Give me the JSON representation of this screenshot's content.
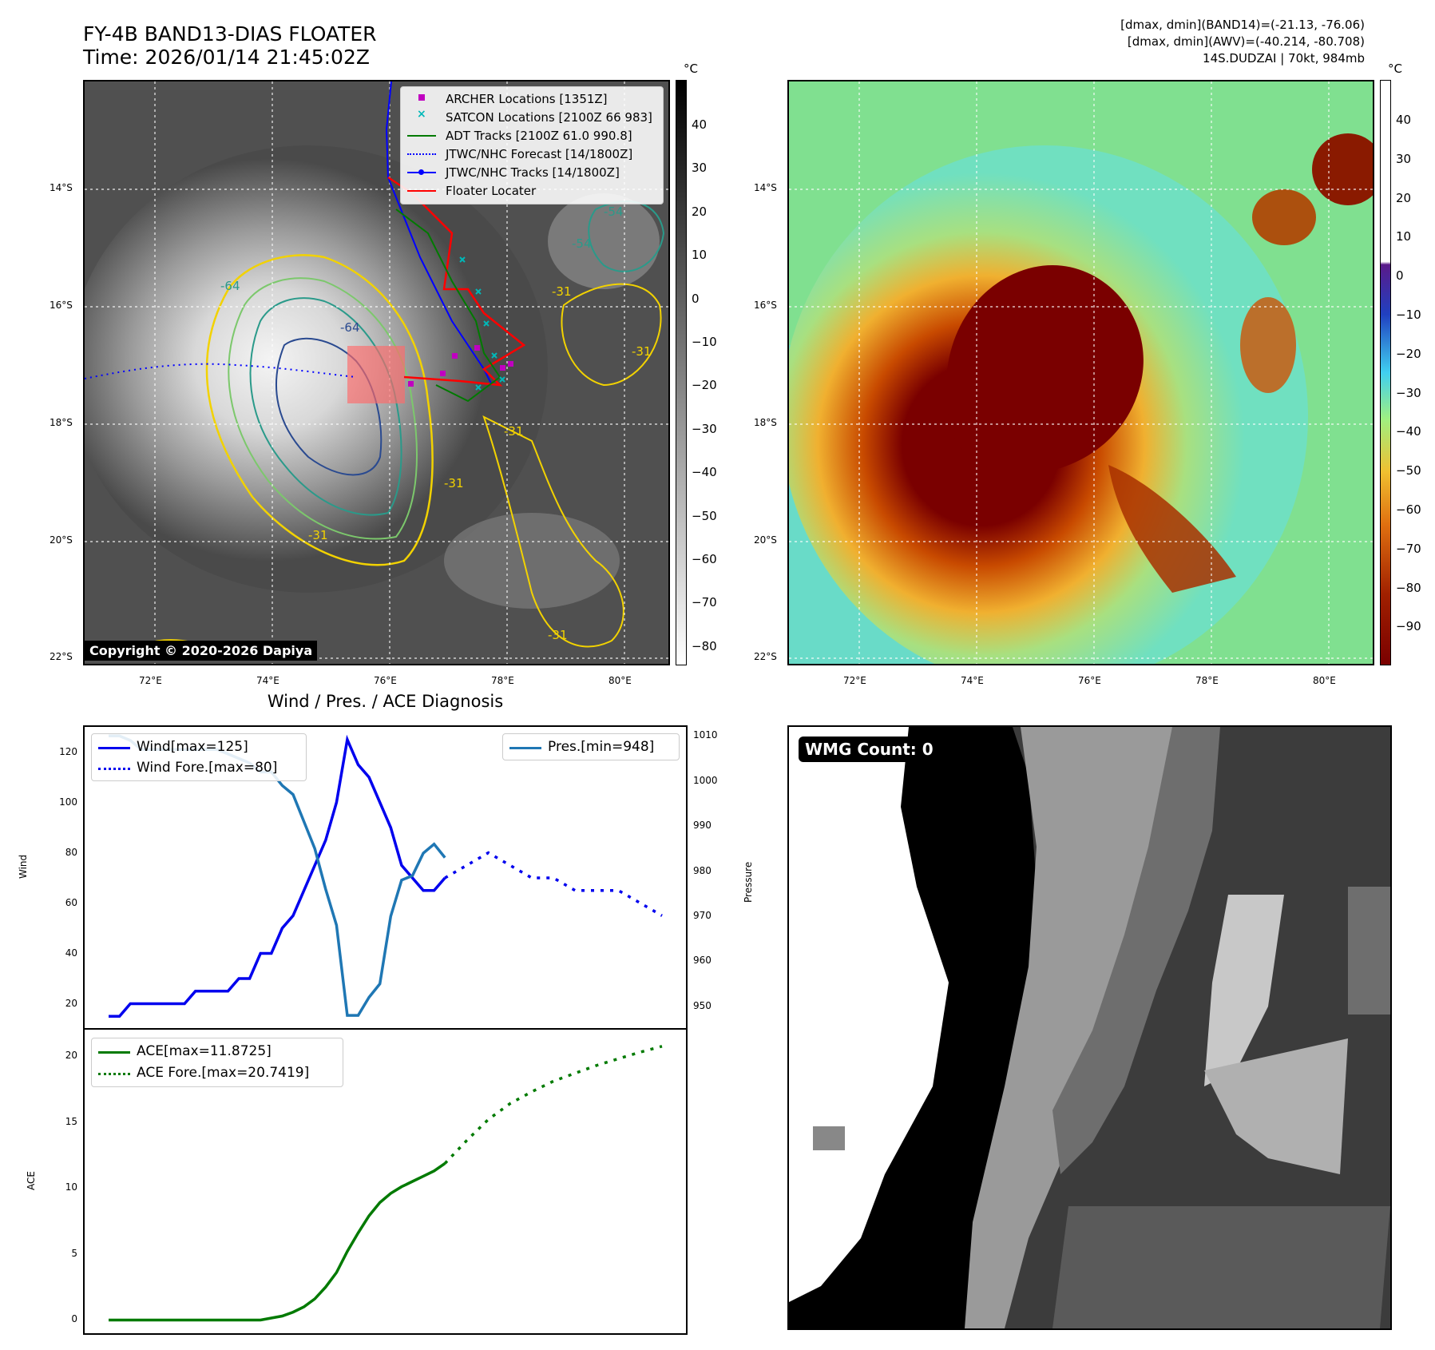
{
  "header": {
    "title": "FY-4B BAND13-DIAS FLOATER",
    "time": "Time: 2026/01/14 21:45:02Z",
    "dmax_band14": "[dmax, dmin](BAND14)=(-21.13, -76.06)",
    "dmax_awv": "[dmax, dmin](AWV)=(-40.214, -80.708)",
    "storm": "14S.DUDZAI | 70kt, 984mb"
  },
  "map": {
    "lat_labels": [
      "14°S",
      "16°S",
      "18°S",
      "20°S",
      "22°S"
    ],
    "lon_labels": [
      "72°E",
      "74°E",
      "76°E",
      "78°E",
      "80°E"
    ],
    "copyright": "Copyright © 2020-2026 Dapiya",
    "contour_labels": [
      "-64",
      "-64",
      "-54",
      "-54",
      "-31",
      "-31",
      "-31",
      "-31",
      "-31",
      "-31"
    ],
    "legend": [
      {
        "label": "ARCHER Locations [1351Z]",
        "color": "#c000c0"
      },
      {
        "label": "SATCON Locations [2100Z 66 983]",
        "color": "#00b8b8"
      },
      {
        "label": "ADT Tracks [2100Z 61.0 990.8]",
        "color": "#007a00"
      },
      {
        "label": "JTWC/NHC Forecast [14/1800Z]",
        "color": "#0000ff"
      },
      {
        "label": "JTWC/NHC Tracks [14/1800Z]",
        "color": "#0000ff"
      },
      {
        "label": "Floater Locater",
        "color": "#ff0000"
      }
    ]
  },
  "colorbar_ir": {
    "unit": "°C",
    "ticks": [
      "40",
      "30",
      "20",
      "10",
      "0",
      "−10",
      "−20",
      "−30",
      "−40",
      "−50",
      "−60",
      "−70",
      "−80"
    ]
  },
  "colorbar_awv": {
    "unit": "°C",
    "ticks": [
      "40",
      "30",
      "20",
      "10",
      "0",
      "−10",
      "−20",
      "−30",
      "−40",
      "−50",
      "−60",
      "−70",
      "−80",
      "−90"
    ]
  },
  "diagnosis": {
    "title": "Wind / Pres. / ACE Diagnosis",
    "wind_ylabel": "Wind",
    "pres_ylabel": "Pressure",
    "ace_ylabel": "ACE",
    "wind_ticks": [
      "120",
      "100",
      "80",
      "60",
      "40",
      "20"
    ],
    "pres_ticks": [
      "1010",
      "1000",
      "990",
      "980",
      "970",
      "960",
      "950"
    ],
    "ace_ticks": [
      "20",
      "15",
      "10",
      "5",
      "0"
    ],
    "legend_wind": "Wind[max=125]",
    "legend_wind_fore": "Wind Fore.[max=80]",
    "legend_pres": "Pres.[min=948]",
    "legend_ace": "ACE[max=11.8725]",
    "legend_ace_fore": "ACE Fore.[max=20.7419]"
  },
  "wmg": {
    "label": "WMG Count: 0"
  },
  "chart_data": [
    {
      "type": "line",
      "title": "Wind / Pres. / ACE Diagnosis",
      "ylabel": "Wind",
      "ylim": [
        10,
        130
      ],
      "series": [
        {
          "name": "Wind[max=125]",
          "color": "#0000ee",
          "style": "solid",
          "x": [
            0,
            1,
            2,
            3,
            4,
            5,
            6,
            7,
            8,
            9,
            10,
            11,
            12,
            13,
            14,
            15,
            16,
            17,
            18,
            19,
            20,
            21,
            22,
            23,
            24,
            25,
            26,
            27,
            28,
            29,
            30,
            31
          ],
          "values": [
            15,
            15,
            20,
            20,
            20,
            20,
            20,
            20,
            25,
            25,
            25,
            25,
            30,
            30,
            40,
            40,
            50,
            55,
            65,
            75,
            85,
            100,
            125,
            115,
            110,
            100,
            90,
            75,
            70,
            65,
            65,
            70
          ]
        },
        {
          "name": "Wind Fore.[max=80]",
          "color": "#0000ee",
          "style": "dotted",
          "x": [
            31,
            33,
            35,
            37,
            39,
            41,
            43,
            45,
            47,
            49,
            51
          ],
          "values": [
            70,
            75,
            80,
            75,
            70,
            70,
            65,
            65,
            65,
            60,
            55
          ]
        }
      ]
    },
    {
      "type": "line",
      "ylabel": "Pressure",
      "ylim": [
        945,
        1012
      ],
      "series": [
        {
          "name": "Pres.[min=948]",
          "color": "#1f77b4",
          "style": "solid",
          "x": [
            0,
            1,
            2,
            3,
            4,
            5,
            6,
            7,
            8,
            9,
            10,
            11,
            12,
            13,
            14,
            15,
            16,
            17,
            18,
            19,
            20,
            21,
            22,
            23,
            24,
            25,
            26,
            27,
            28,
            29,
            30,
            31
          ],
          "values": [
            1010,
            1010,
            1009,
            1007,
            1007,
            1007,
            1007,
            1007,
            1007,
            1007,
            1007,
            1006,
            1005,
            1004,
            1002,
            1002,
            999,
            997,
            991,
            985,
            976,
            968,
            948,
            948,
            952,
            955,
            970,
            978,
            979,
            984,
            986,
            983
          ]
        }
      ]
    },
    {
      "type": "line",
      "ylabel": "ACE",
      "ylim": [
        -1,
        22
      ],
      "series": [
        {
          "name": "ACE[max=11.8725]",
          "color": "#007a00",
          "style": "solid",
          "x": [
            0,
            2,
            4,
            6,
            8,
            10,
            12,
            14,
            16,
            17,
            18,
            19,
            20,
            21,
            22,
            23,
            24,
            25,
            26,
            27,
            28,
            29,
            30,
            31
          ],
          "values": [
            0,
            0,
            0,
            0,
            0,
            0,
            0,
            0,
            0.3,
            0.6,
            1.0,
            1.6,
            2.5,
            3.6,
            5.2,
            6.6,
            7.9,
            8.9,
            9.6,
            10.1,
            10.5,
            10.9,
            11.3,
            11.87
          ]
        },
        {
          "name": "ACE Fore.[max=20.7419]",
          "color": "#007a00",
          "style": "dotted",
          "x": [
            31,
            33,
            35,
            37,
            39,
            41,
            43,
            45,
            47,
            49,
            51
          ],
          "values": [
            11.87,
            13.6,
            15.2,
            16.4,
            17.3,
            18.1,
            18.7,
            19.3,
            19.8,
            20.3,
            20.74
          ]
        }
      ]
    }
  ]
}
